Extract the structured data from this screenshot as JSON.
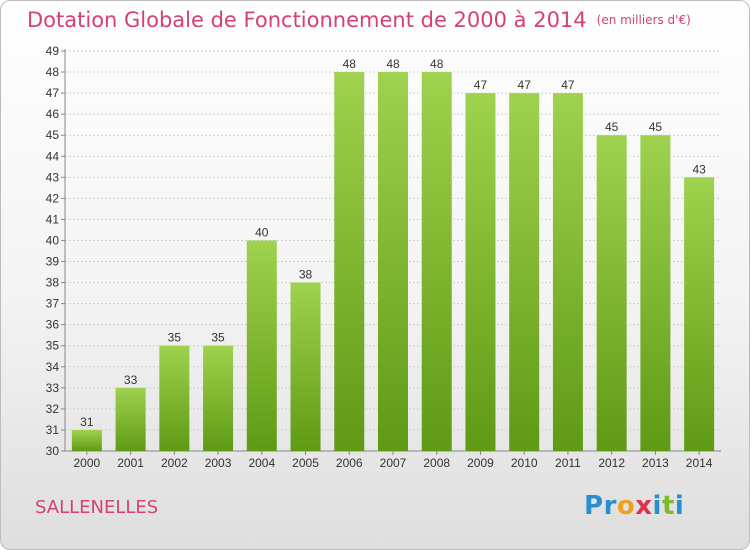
{
  "title": "Dotation Globale de Fonctionnement de 2000 à 2014",
  "unit_note": "(en milliers d'€)",
  "commune": "SALLENELLES",
  "logo": {
    "text": "Proxiti",
    "letters": [
      {
        "ch": "P",
        "color": "#2a8fd0"
      },
      {
        "ch": "r",
        "color": "#2a8fd0"
      },
      {
        "ch": "o",
        "color": "#f0a020"
      },
      {
        "ch": "x",
        "color": "#e0304f"
      },
      {
        "ch": "i",
        "color": "#2a8fd0"
      },
      {
        "ch": "t",
        "color": "#7dbb2a"
      },
      {
        "ch": "i",
        "color": "#2a8fd0"
      }
    ]
  },
  "colors": {
    "title": "#d6416e",
    "bar_top": "#9fd24e",
    "bar_bottom": "#5f9a15",
    "grid": "#d0d0d0",
    "axis": "#888888",
    "label": "#333333"
  },
  "chart_data": {
    "type": "bar",
    "categories": [
      "2000",
      "2001",
      "2002",
      "2003",
      "2004",
      "2005",
      "2006",
      "2007",
      "2008",
      "2009",
      "2010",
      "2011",
      "2012",
      "2013",
      "2014"
    ],
    "values": [
      31,
      33,
      35,
      35,
      40,
      38,
      48,
      48,
      48,
      47,
      47,
      47,
      45,
      45,
      43
    ],
    "ylim": [
      30,
      49
    ],
    "yticks": [
      30,
      31,
      32,
      33,
      34,
      35,
      36,
      37,
      38,
      39,
      40,
      41,
      42,
      43,
      44,
      45,
      46,
      47,
      48,
      49
    ],
    "grid": true,
    "data_labels": true
  }
}
